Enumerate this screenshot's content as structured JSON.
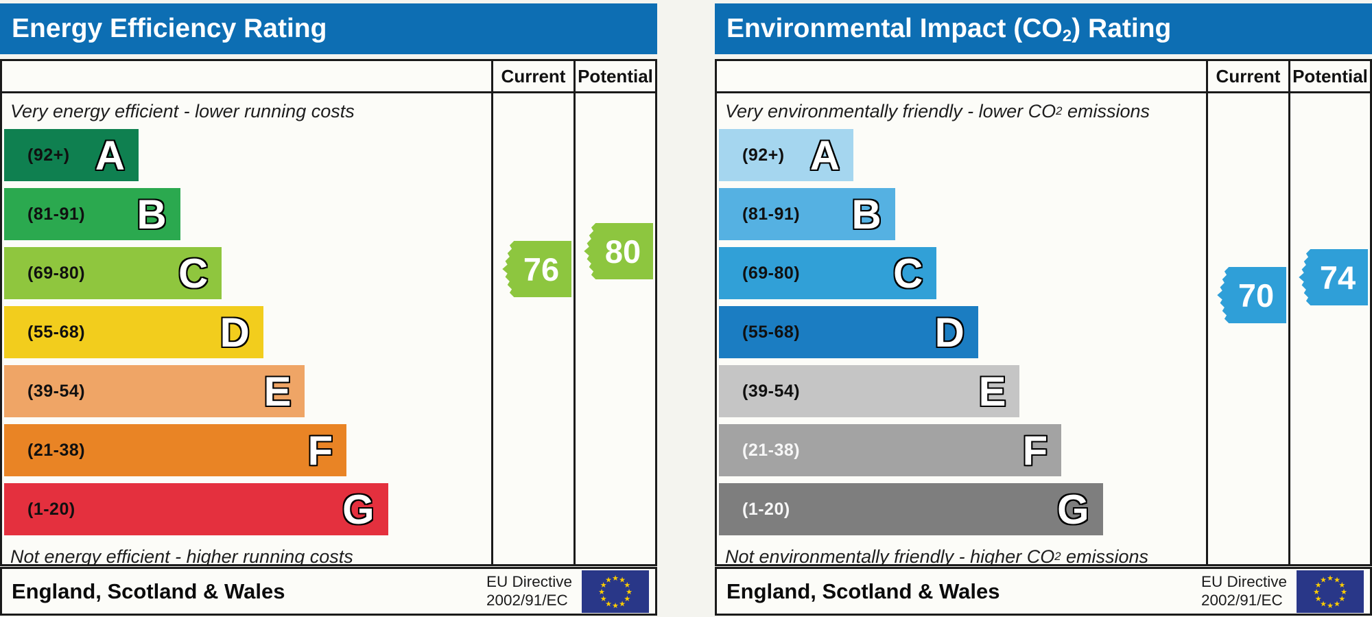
{
  "chart_data": [
    {
      "type": "bar",
      "orientation": "horizontal",
      "title": "Energy Efficiency Rating",
      "categories": [
        "A",
        "B",
        "C",
        "D",
        "E",
        "F",
        "G"
      ],
      "band_ranges": [
        "92+",
        "81-91",
        "69-80",
        "55-68",
        "39-54",
        "21-38",
        "1-20"
      ],
      "band_widths_pct": [
        27.5,
        36,
        44.5,
        53,
        61.5,
        70,
        78.5
      ],
      "band_colors": [
        "#0f8050",
        "#2ba94f",
        "#8fc63e",
        "#f2cd1d",
        "#efa566",
        "#e98425",
        "#e4303e"
      ],
      "scale": [
        1,
        100
      ],
      "current": 76,
      "potential": 80,
      "current_band": "C",
      "potential_band": "C",
      "arrow_color": "#8dc63f",
      "top_label": "Very energy efficient - lower running costs",
      "bottom_label": "Not energy efficient - higher running costs",
      "footer_left": "England, Scotland & Wales",
      "footer_right": "EU Directive 2002/91/EC",
      "legend_position": "none",
      "grid": false
    },
    {
      "type": "bar",
      "orientation": "horizontal",
      "title": "Environmental Impact (CO2) Rating",
      "categories": [
        "A",
        "B",
        "C",
        "D",
        "E",
        "F",
        "G"
      ],
      "band_ranges": [
        "92+",
        "81-91",
        "69-80",
        "55-68",
        "39-54",
        "21-38",
        "1-20"
      ],
      "band_widths_pct": [
        27.5,
        36,
        44.5,
        53,
        61.5,
        70,
        78.5
      ],
      "band_colors": [
        "#a5d6ef",
        "#55b1e2",
        "#31a0d7",
        "#1b7dc2",
        "#c5c5c5",
        "#a3a3a3",
        "#7e7e7e"
      ],
      "scale": [
        1,
        100
      ],
      "current": 70,
      "potential": 74,
      "current_band": "C",
      "potential_band": "C",
      "arrow_color": "#2f9fd8",
      "top_label": "Very environmentally friendly - lower CO2 emissions",
      "bottom_label": "Not environmentally friendly - higher CO2 emissions",
      "footer_left": "England, Scotland & Wales",
      "footer_right": "EU Directive 2002/91/EC",
      "legend_position": "none",
      "grid": false
    }
  ],
  "charts": [
    {
      "title": {
        "pre": "Energy Efficiency Rating",
        "sub": "",
        "post": ""
      },
      "title_bg": "#0d6eb3",
      "columns": {
        "current": "Current",
        "potential": "Potential"
      },
      "top_caption": {
        "pre": "Very energy efficient - lower running costs",
        "sub": "",
        "post": ""
      },
      "bottom_caption": {
        "pre": "Not energy efficient - higher running costs",
        "sub": "",
        "post": ""
      },
      "bands": [
        {
          "letter": "A",
          "range": "(92+)",
          "lo": 92,
          "hi": 100,
          "color": "#0f8050",
          "width_pct": 27.5,
          "text_color": "#101010"
        },
        {
          "letter": "B",
          "range": "(81-91)",
          "lo": 81,
          "hi": 91,
          "color": "#2ba94f",
          "width_pct": 36,
          "text_color": "#101010"
        },
        {
          "letter": "C",
          "range": "(69-80)",
          "lo": 69,
          "hi": 80,
          "color": "#8fc63e",
          "width_pct": 44.5,
          "text_color": "#101010"
        },
        {
          "letter": "D",
          "range": "(55-68)",
          "lo": 55,
          "hi": 68,
          "color": "#f2cd1d",
          "width_pct": 53,
          "text_color": "#101010"
        },
        {
          "letter": "E",
          "range": "(39-54)",
          "lo": 39,
          "hi": 54,
          "color": "#efa566",
          "width_pct": 61.5,
          "text_color": "#101010"
        },
        {
          "letter": "F",
          "range": "(21-38)",
          "lo": 21,
          "hi": 38,
          "color": "#e98425",
          "width_pct": 70,
          "text_color": "#101010"
        },
        {
          "letter": "G",
          "range": "(1-20)",
          "lo": 1,
          "hi": 20,
          "color": "#e4303e",
          "width_pct": 78.5,
          "text_color": "#101010"
        }
      ],
      "current": {
        "value": "76",
        "color": "#8dc63f"
      },
      "potential": {
        "value": "80",
        "color": "#8dc63f"
      },
      "footer": {
        "region": "England, Scotland & Wales",
        "directive_line1": "EU Directive",
        "directive_line2": "2002/91/EC"
      }
    },
    {
      "title": {
        "pre": "Environmental Impact (CO",
        "sub": "2",
        "post": ") Rating"
      },
      "title_bg": "#0d6eb3",
      "columns": {
        "current": "Current",
        "potential": "Potential"
      },
      "top_caption": {
        "pre": "Very environmentally friendly - lower CO",
        "sub": "2",
        "post": " emissions"
      },
      "bottom_caption": {
        "pre": "Not environmentally friendly - higher CO",
        "sub": "2",
        "post": " emissions"
      },
      "bands": [
        {
          "letter": "A",
          "range": "(92+)",
          "lo": 92,
          "hi": 100,
          "color": "#a5d6ef",
          "width_pct": 27.5,
          "text_color": "#101010"
        },
        {
          "letter": "B",
          "range": "(81-91)",
          "lo": 81,
          "hi": 91,
          "color": "#55b1e2",
          "width_pct": 36,
          "text_color": "#101010"
        },
        {
          "letter": "C",
          "range": "(69-80)",
          "lo": 69,
          "hi": 80,
          "color": "#31a0d7",
          "width_pct": 44.5,
          "text_color": "#101010"
        },
        {
          "letter": "D",
          "range": "(55-68)",
          "lo": 55,
          "hi": 68,
          "color": "#1b7dc2",
          "width_pct": 53,
          "text_color": "#101010"
        },
        {
          "letter": "E",
          "range": "(39-54)",
          "lo": 39,
          "hi": 54,
          "color": "#c5c5c5",
          "width_pct": 61.5,
          "text_color": "#101010"
        },
        {
          "letter": "F",
          "range": "(21-38)",
          "lo": 21,
          "hi": 38,
          "color": "#a3a3a3",
          "width_pct": 70,
          "text_color": "#f7f7f7"
        },
        {
          "letter": "G",
          "range": "(1-20)",
          "lo": 1,
          "hi": 20,
          "color": "#7e7e7e",
          "width_pct": 78.5,
          "text_color": "#f7f7f7"
        }
      ],
      "current": {
        "value": "70",
        "color": "#2f9fd8"
      },
      "potential": {
        "value": "74",
        "color": "#2f9fd8"
      },
      "footer": {
        "region": "England, Scotland & Wales",
        "directive_line1": "EU Directive",
        "directive_line2": "2002/91/EC"
      }
    }
  ]
}
